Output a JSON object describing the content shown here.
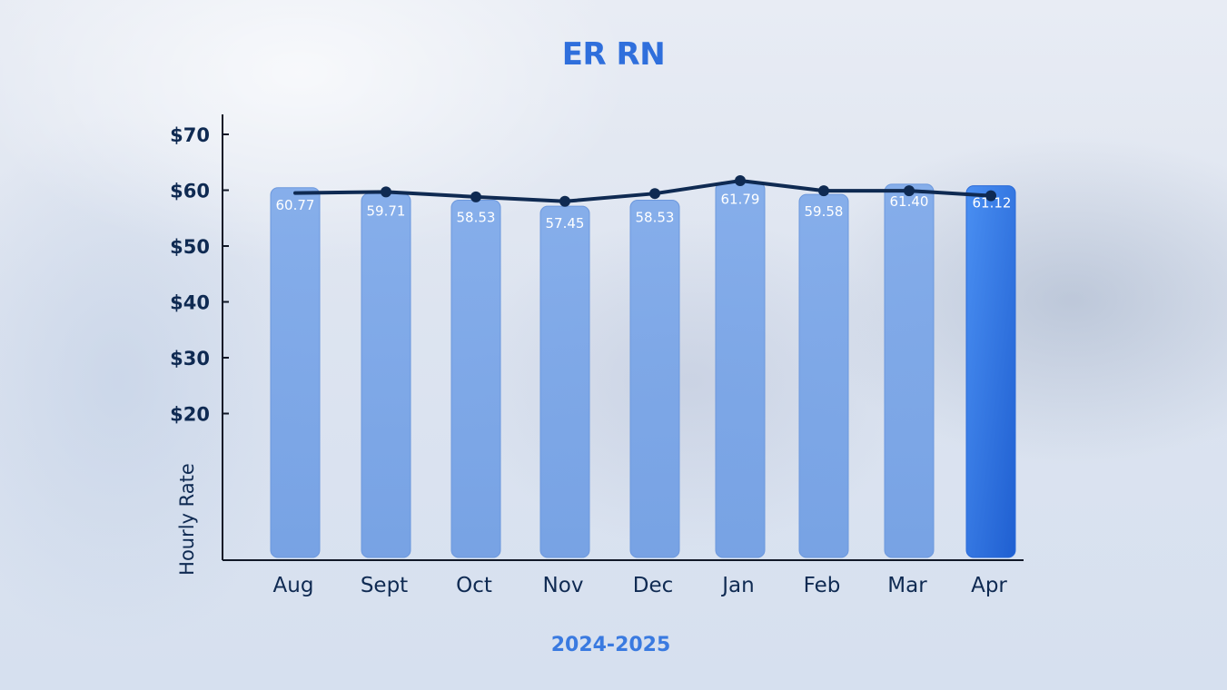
{
  "chart_data": {
    "type": "bar",
    "title": "ER RN",
    "xlabel": "2024-2025",
    "ylabel": "Hourly Rate",
    "categories": [
      "Aug",
      "Sept",
      "Oct",
      "Nov",
      "Dec",
      "Jan",
      "Feb",
      "Mar",
      "Apr"
    ],
    "series": [
      {
        "type": "bar",
        "values": [
          60.77,
          59.71,
          58.53,
          57.45,
          58.53,
          61.79,
          59.58,
          61.4,
          61.12
        ]
      },
      {
        "type": "line",
        "values": [
          59.5,
          59.7,
          58.8,
          58.0,
          59.4,
          61.7,
          59.9,
          59.9,
          59.0
        ]
      }
    ],
    "value_labels": [
      "60.77",
      "59.71",
      "58.53",
      "57.45",
      "58.53",
      "61.79",
      "59.58",
      "61.40",
      "61.12"
    ],
    "y_ticks": [
      {
        "value": 70,
        "label": "$70"
      },
      {
        "value": 60,
        "label": "$60"
      },
      {
        "value": 50,
        "label": "$50"
      },
      {
        "value": 40,
        "label": "$40"
      },
      {
        "value": 30,
        "label": "$30"
      },
      {
        "value": 20,
        "label": "$20"
      }
    ],
    "ylim": [
      0,
      73
    ],
    "grid": false,
    "legend": "none",
    "colors": {
      "bar": "#7aa6e8",
      "bar_highlight": "#2f74e6",
      "line": "#0f2a52",
      "axis": "#111827"
    }
  }
}
